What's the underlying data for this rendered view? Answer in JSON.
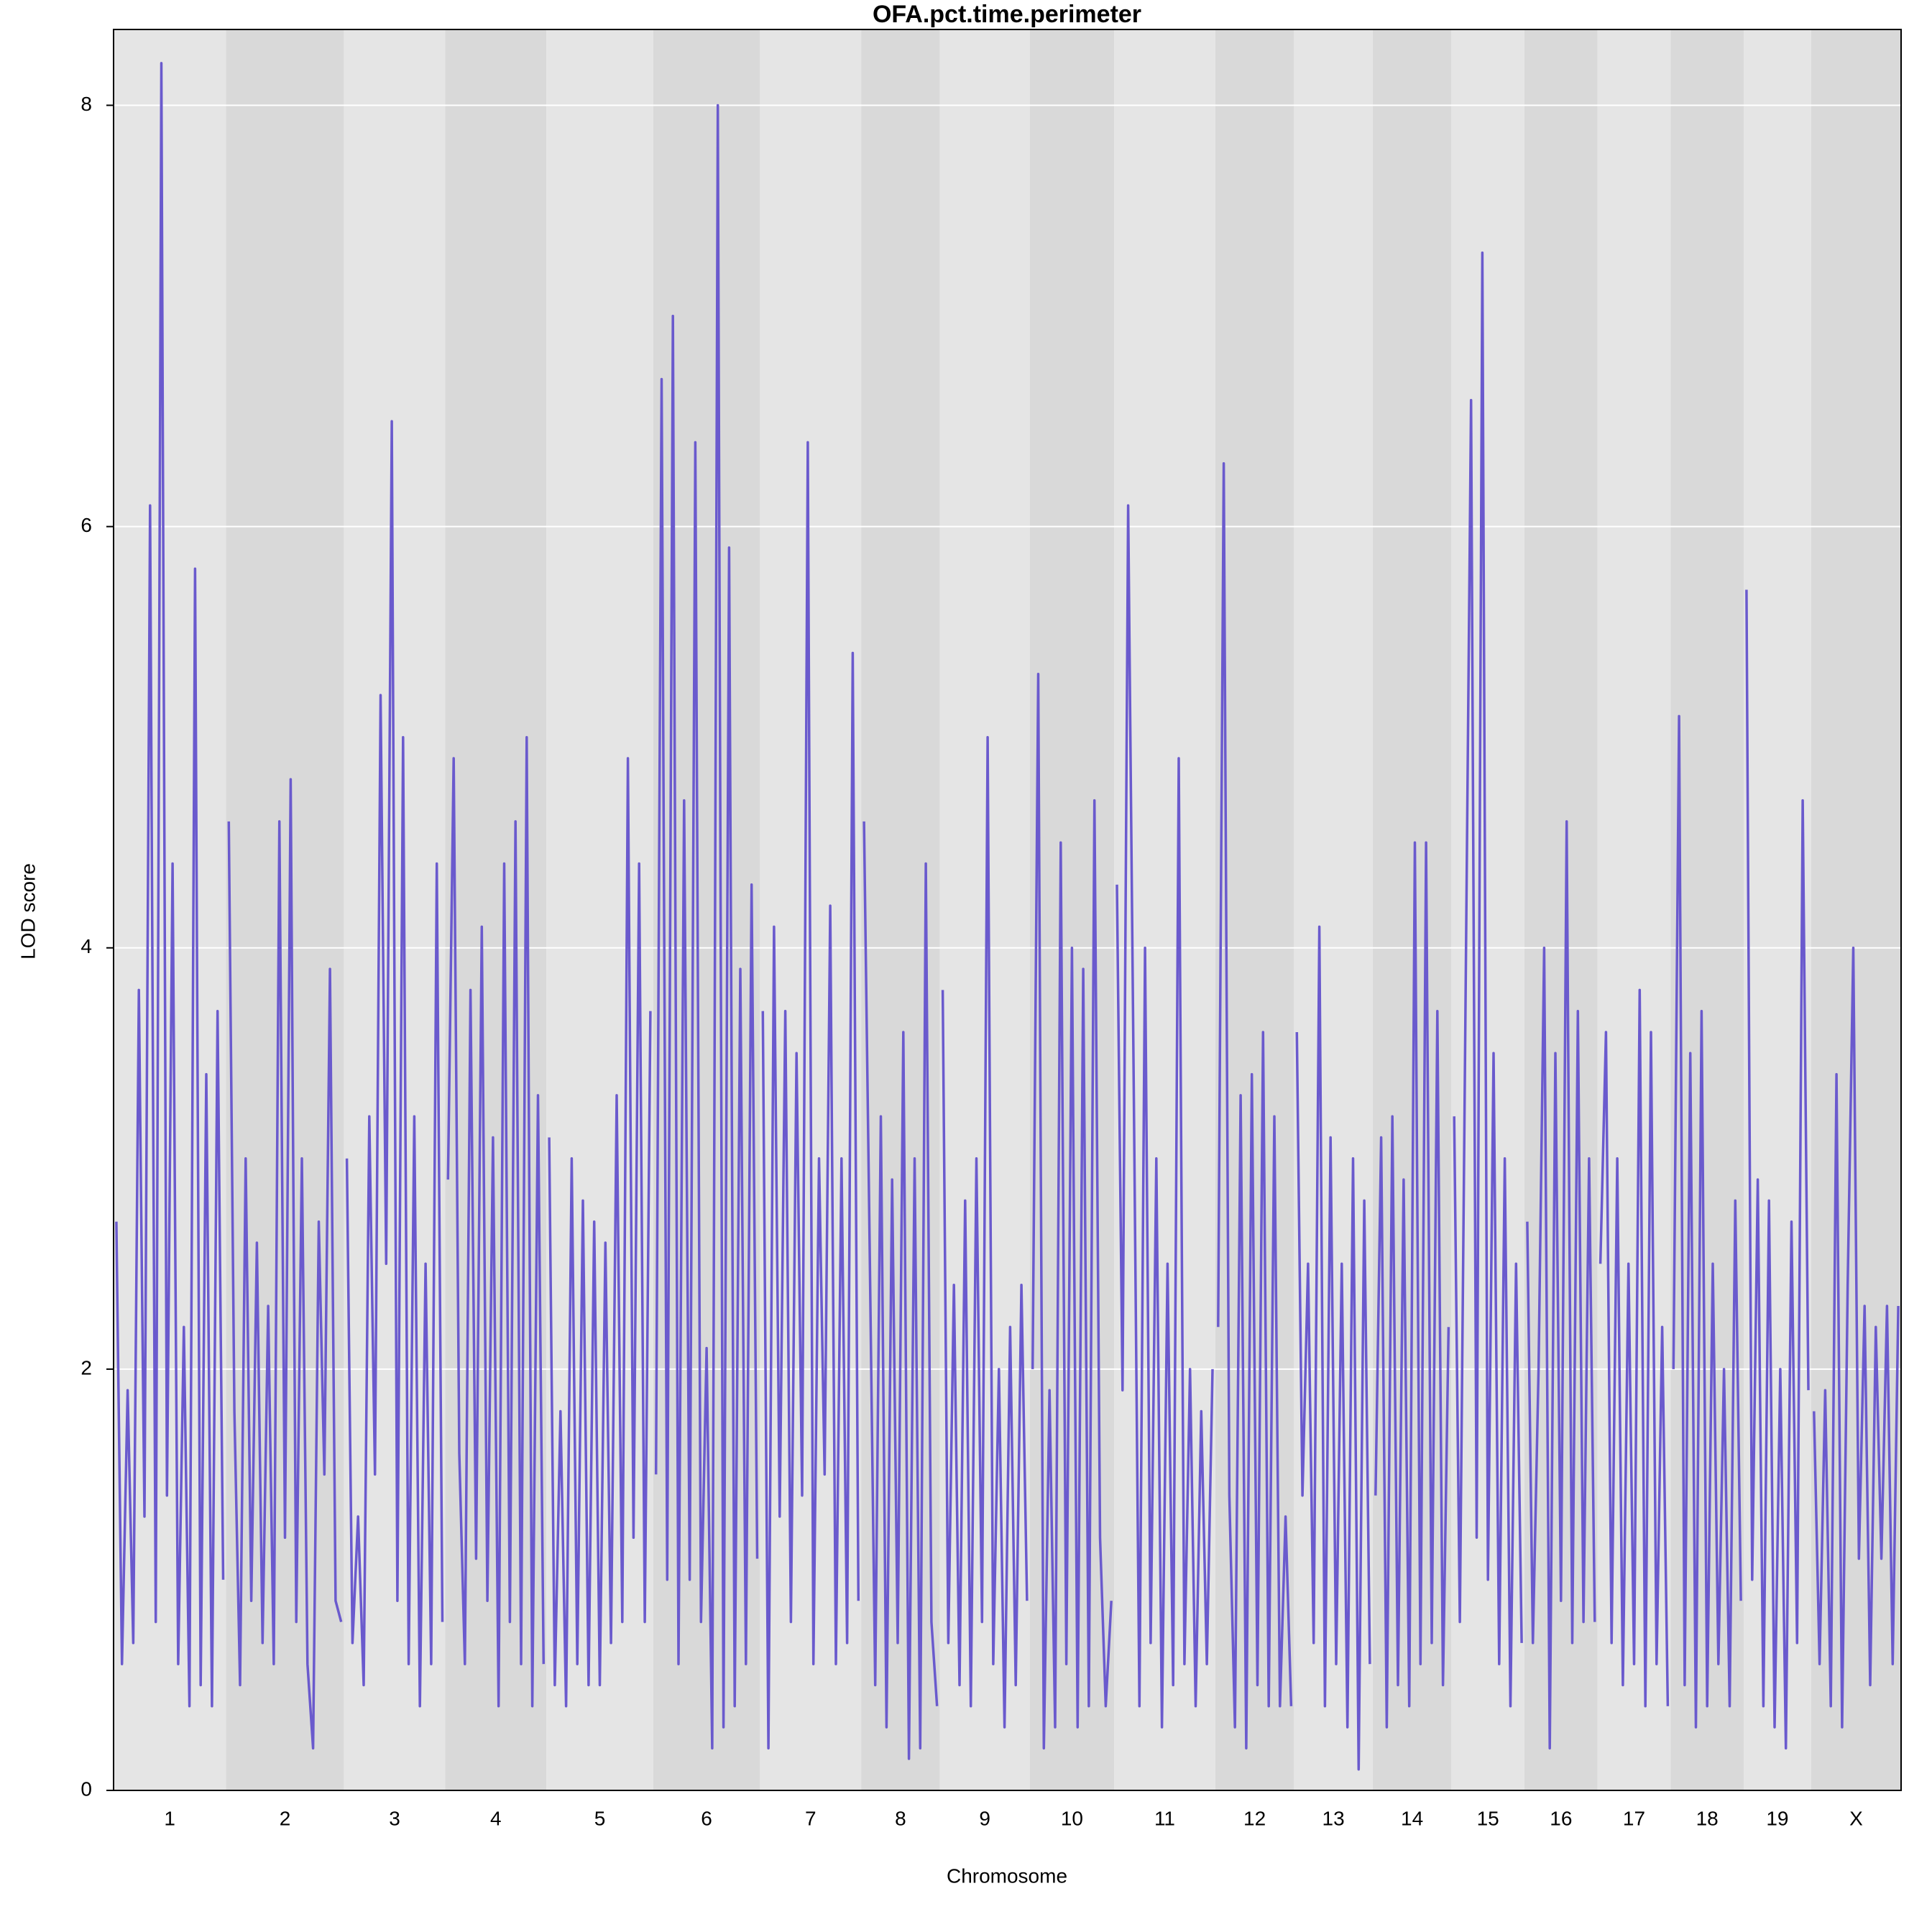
{
  "chart_data": {
    "type": "line",
    "title": "OFA.pct.time.perimeter",
    "x_label": "Chromosome",
    "y_label": "LOD score",
    "color": "#6a5acd",
    "band_colors": [
      "#e5e5e5",
      "#d9d9d9"
    ],
    "grid": true,
    "ylim": [
      0,
      8.36
    ],
    "yticks": [
      0,
      2,
      4,
      6,
      8
    ],
    "chromosomes": [
      {
        "name": "1",
        "values": [
          2.7,
          0.6,
          1.9,
          0.7,
          3.8,
          1.3,
          6.1,
          0.8,
          8.2,
          1.4,
          4.4,
          0.6,
          2.2,
          0.4,
          5.8,
          0.5,
          3.4,
          0.4,
          3.7,
          1.0
        ]
      },
      {
        "name": "2",
        "values": [
          4.6,
          1.8,
          0.5,
          3.0,
          0.9,
          2.6,
          0.7,
          2.3,
          0.6,
          4.6,
          1.2,
          4.8,
          0.8,
          3.0,
          0.6,
          0.2,
          2.7,
          1.5,
          3.9,
          0.9,
          0.8
        ]
      },
      {
        "name": "3",
        "values": [
          3.0,
          0.7,
          1.3,
          0.5,
          3.2,
          1.5,
          5.2,
          2.5,
          6.5,
          0.9,
          5.0,
          0.6,
          3.2,
          0.4,
          2.5,
          0.6,
          4.4,
          0.8
        ]
      },
      {
        "name": "4",
        "values": [
          2.9,
          4.9,
          1.6,
          0.6,
          3.8,
          1.1,
          4.1,
          0.9,
          3.1,
          0.4,
          4.4,
          0.8,
          4.6,
          0.6,
          5.0,
          0.4,
          3.3,
          0.6
        ]
      },
      {
        "name": "5",
        "values": [
          3.1,
          0.5,
          1.8,
          0.4,
          3.0,
          0.6,
          2.8,
          0.5,
          2.7,
          0.5,
          2.6,
          0.7,
          3.3,
          0.8,
          4.9,
          1.2,
          4.4,
          0.8,
          3.7
        ]
      },
      {
        "name": "6",
        "values": [
          1.5,
          6.7,
          1.0,
          7.0,
          0.6,
          4.7,
          1.0,
          6.4,
          0.8,
          2.1,
          0.2,
          8.0,
          0.3,
          5.9,
          0.4,
          3.9,
          0.6,
          4.3,
          1.1
        ]
      },
      {
        "name": "7",
        "values": [
          3.7,
          0.2,
          4.1,
          1.3,
          3.7,
          0.8,
          3.5,
          1.4,
          6.4,
          0.6,
          3.0,
          1.5,
          4.2,
          0.6,
          3.0,
          0.7,
          5.4,
          0.9
        ]
      },
      {
        "name": "8",
        "values": [
          4.6,
          2.6,
          0.5,
          3.2,
          0.3,
          2.9,
          0.7,
          3.6,
          0.15,
          3.0,
          0.2,
          4.4,
          0.8,
          0.4
        ]
      },
      {
        "name": "9",
        "values": [
          3.8,
          0.7,
          2.4,
          0.5,
          2.8,
          0.4,
          3.0,
          0.8,
          5.0,
          0.6,
          2.0,
          0.3,
          2.2,
          0.5,
          2.4,
          0.9
        ]
      },
      {
        "name": "10",
        "values": [
          2.0,
          5.3,
          0.2,
          1.9,
          0.3,
          4.5,
          0.6,
          4.0,
          0.3,
          3.9,
          0.4,
          4.7,
          1.2,
          0.4,
          0.9
        ]
      },
      {
        "name": "11",
        "values": [
          4.3,
          1.9,
          6.1,
          3.3,
          0.4,
          4.0,
          0.7,
          3.0,
          0.3,
          2.5,
          0.5,
          4.9,
          0.6,
          2.0,
          0.4,
          1.8,
          0.6,
          2.0
        ]
      },
      {
        "name": "12",
        "values": [
          2.2,
          6.3,
          1.4,
          0.3,
          3.3,
          0.2,
          3.4,
          0.5,
          3.6,
          0.4,
          3.2,
          0.4,
          1.3,
          0.4
        ]
      },
      {
        "name": "13",
        "values": [
          3.6,
          1.4,
          2.5,
          0.7,
          4.1,
          0.4,
          3.1,
          0.6,
          2.5,
          0.3,
          3.0,
          0.1,
          2.8,
          0.6
        ]
      },
      {
        "name": "14",
        "values": [
          1.4,
          3.1,
          0.3,
          3.2,
          0.5,
          2.9,
          0.4,
          4.5,
          0.6,
          4.5,
          0.7,
          3.7,
          0.5,
          2.2
        ]
      },
      {
        "name": "15",
        "values": [
          3.2,
          0.8,
          3.7,
          6.6,
          1.2,
          7.3,
          1.0,
          3.5,
          0.6,
          3.0,
          0.4,
          2.5,
          0.7
        ]
      },
      {
        "name": "16",
        "values": [
          2.7,
          0.7,
          2.0,
          4.0,
          0.2,
          3.5,
          0.9,
          4.6,
          0.7,
          3.7,
          0.8,
          3.0,
          0.8
        ]
      },
      {
        "name": "17",
        "values": [
          2.5,
          3.6,
          0.7,
          3.0,
          0.5,
          2.5,
          0.6,
          3.8,
          0.4,
          3.6,
          0.6,
          2.2,
          0.4
        ]
      },
      {
        "name": "18",
        "values": [
          2.0,
          5.1,
          0.5,
          3.5,
          0.3,
          3.7,
          0.4,
          2.5,
          0.6,
          2.0,
          0.4,
          2.8,
          0.9
        ]
      },
      {
        "name": "19",
        "values": [
          5.7,
          1.0,
          2.9,
          0.4,
          2.8,
          0.3,
          2.0,
          0.2,
          2.7,
          0.7,
          4.7,
          1.9
        ]
      },
      {
        "name": "X",
        "values": [
          1.8,
          0.6,
          1.9,
          0.4,
          3.4,
          0.3,
          2.4,
          4.0,
          1.1,
          2.3,
          0.5,
          2.2,
          1.1,
          2.3,
          0.6,
          2.3
        ]
      }
    ]
  }
}
